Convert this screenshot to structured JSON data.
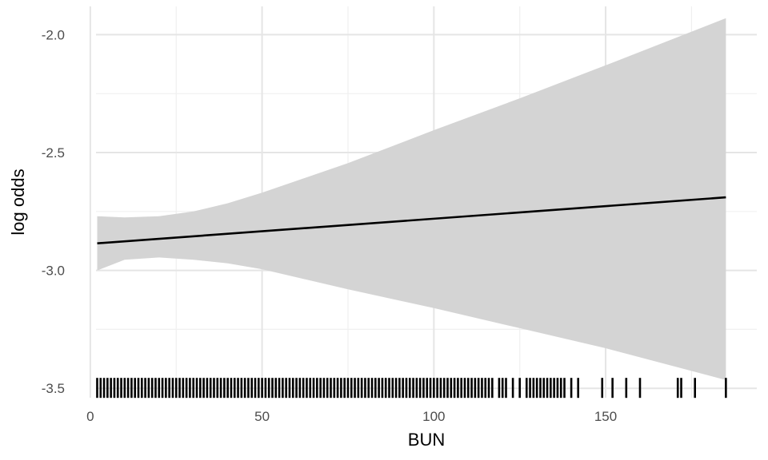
{
  "chart_data": {
    "type": "line",
    "title": "",
    "xlabel": "BUN",
    "ylabel": "log odds",
    "xlim": [
      -3,
      194
    ],
    "ylim": [
      -3.54,
      -1.88
    ],
    "x_ticks": [
      0,
      50,
      100,
      150
    ],
    "x_tick_labels": [
      "0",
      "50",
      "100",
      "150"
    ],
    "y_ticks": [
      -3.5,
      -3.0,
      -2.5,
      -2.0
    ],
    "y_tick_labels": [
      "-3.5",
      "-3.0",
      "-2.5",
      "-2.0"
    ],
    "grid": true,
    "legend": "none",
    "series": [
      {
        "type": "line",
        "x": [
          2,
          185
        ],
        "y": [
          -2.885,
          -2.69
        ]
      }
    ],
    "confidence_band": {
      "x": [
        2,
        10,
        20,
        30,
        40,
        50,
        75,
        100,
        125,
        150,
        185
      ],
      "lower": [
        -3.0,
        -2.955,
        -2.945,
        -2.955,
        -2.97,
        -2.995,
        -3.08,
        -3.16,
        -3.245,
        -3.33,
        -3.465
      ],
      "upper": [
        -2.77,
        -2.775,
        -2.77,
        -2.75,
        -2.715,
        -2.67,
        -2.545,
        -2.405,
        -2.27,
        -2.13,
        -1.93
      ]
    },
    "rug_x": [
      2,
      3,
      4,
      5,
      6,
      7,
      8,
      9,
      10,
      11,
      12,
      13,
      14,
      15,
      16,
      17,
      18,
      19,
      20,
      21,
      22,
      23,
      24,
      25,
      26,
      27,
      28,
      29,
      30,
      31,
      32,
      33,
      34,
      35,
      36,
      37,
      38,
      39,
      40,
      41,
      42,
      43,
      44,
      45,
      46,
      47,
      48,
      49,
      50,
      51,
      52,
      53,
      54,
      55,
      56,
      57,
      58,
      59,
      60,
      61,
      62,
      63,
      64,
      65,
      66,
      67,
      68,
      69,
      70,
      71,
      72,
      73,
      74,
      75,
      76,
      77,
      78,
      79,
      80,
      81,
      82,
      83,
      84,
      85,
      86,
      87,
      88,
      89,
      90,
      91,
      92,
      93,
      94,
      95,
      96,
      97,
      98,
      99,
      100,
      101,
      102,
      103,
      104,
      105,
      106,
      107,
      108,
      109,
      110,
      111,
      112,
      113,
      114,
      115,
      116,
      117,
      119,
      120,
      121,
      123,
      125,
      127,
      128,
      129,
      130,
      131,
      132,
      133,
      134,
      135,
      136,
      137,
      138,
      140,
      142,
      149,
      152,
      156,
      160,
      171,
      172,
      176,
      185
    ],
    "colors": {
      "line": "#000000",
      "band": "#d4d4d4",
      "rug": "#000000",
      "grid_major": "#e5e5e5",
      "grid_minor": "#f0f0f0"
    }
  }
}
